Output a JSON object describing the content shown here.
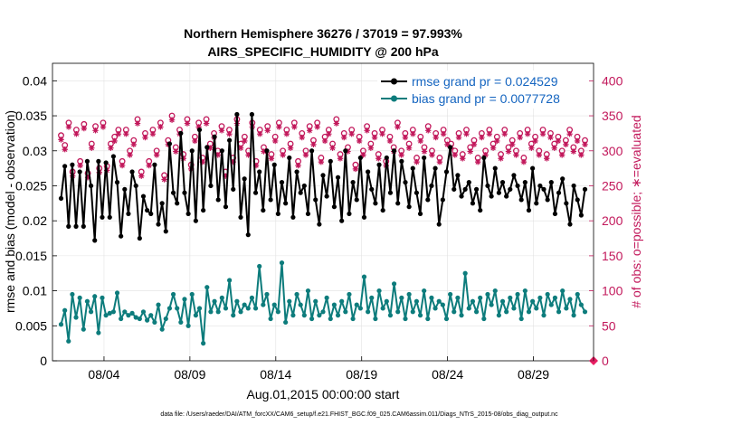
{
  "chart_data": {
    "type": "line",
    "title": "Northern Hemisphere 36276 / 37019 = 97.993%",
    "subtitle": "AIRS_SPECIFIC_HUMIDITY @ 200 hPa",
    "xlabel": "Aug.01,2015 00:00:00 start",
    "ylabel": "rmse and bias (model - observation)",
    "y2label": "# of obs: o=possible; ∗=evaluated",
    "x_ticks": [
      "08/04",
      "08/09",
      "08/14",
      "08/19",
      "08/24",
      "08/29"
    ],
    "x_range_days": [
      1,
      32.5
    ],
    "x_tick_days": [
      4,
      9,
      14,
      19,
      24,
      29
    ],
    "ylim": [
      0,
      0.0425
    ],
    "y_ticks": [
      "0",
      "0.005",
      "0.01",
      "0.015",
      "0.02",
      "0.025",
      "0.03",
      "0.035",
      "0.04"
    ],
    "y_tick_values": [
      0,
      0.005,
      0.01,
      0.015,
      0.02,
      0.025,
      0.03,
      0.035,
      0.04
    ],
    "y2lim": [
      0,
      425
    ],
    "y2_ticks": [
      "0",
      "50",
      "100",
      "150",
      "200",
      "250",
      "300",
      "350",
      "400"
    ],
    "y2_tick_values": [
      0,
      50,
      100,
      150,
      200,
      250,
      300,
      350,
      400
    ],
    "grid": true,
    "legend_position": "top-right",
    "series": [
      {
        "name": "rmse grand pr = 0.024529",
        "color": "#000000",
        "marker": "filled-circle",
        "axis": "left",
        "values": [
          0.0232,
          0.0278,
          0.0192,
          0.028,
          0.0192,
          0.027,
          0.0192,
          0.0285,
          0.025,
          0.0172,
          0.0285,
          0.0205,
          0.0283,
          0.0205,
          0.0292,
          0.0255,
          0.0178,
          0.0245,
          0.021,
          0.027,
          0.025,
          0.0175,
          0.0235,
          0.0215,
          0.021,
          0.028,
          0.0195,
          0.0225,
          0.0185,
          0.031,
          0.024,
          0.0225,
          0.0325,
          0.024,
          0.021,
          0.03,
          0.02,
          0.033,
          0.0215,
          0.0305,
          0.025,
          0.032,
          0.023,
          0.03,
          0.022,
          0.0315,
          0.0245,
          0.0352,
          0.0205,
          0.026,
          0.018,
          0.0352,
          0.024,
          0.027,
          0.0215,
          0.03,
          0.023,
          0.028,
          0.021,
          0.0255,
          0.0225,
          0.029,
          0.0205,
          0.027,
          0.024,
          0.025,
          0.021,
          0.03,
          0.023,
          0.0195,
          0.0265,
          0.0235,
          0.0285,
          0.022,
          0.0262,
          0.02,
          0.03,
          0.021,
          0.0255,
          0.023,
          0.029,
          0.0205,
          0.027,
          0.0245,
          0.0225,
          0.028,
          0.0215,
          0.029,
          0.024,
          0.03,
          0.0225,
          0.0285,
          0.0255,
          0.022,
          0.0275,
          0.024,
          0.021,
          0.029,
          0.023,
          0.025,
          0.0275,
          0.0195,
          0.023,
          0.027,
          0.0305,
          0.0245,
          0.0265,
          0.0235,
          0.0245,
          0.0255,
          0.0225,
          0.0245,
          0.0215,
          0.029,
          0.025,
          0.0235,
          0.0275,
          0.024,
          0.0255,
          0.0235,
          0.0245,
          0.0265,
          0.025,
          0.023,
          0.0255,
          0.0215,
          0.0275,
          0.0225,
          0.025,
          0.0245,
          0.023,
          0.0255,
          0.021,
          0.024,
          0.026,
          0.0225,
          0.0195,
          0.025,
          0.023,
          0.0208,
          0.0245
        ]
      },
      {
        "name": "bias grand pr = 0.0077728",
        "color": "#0d7c7c",
        "marker": "filled-circle",
        "axis": "left",
        "values": [
          0.0052,
          0.0072,
          0.0028,
          0.0095,
          0.0062,
          0.009,
          0.0045,
          0.0085,
          0.007,
          0.0092,
          0.004,
          0.009,
          0.0065,
          0.0068,
          0.007,
          0.0097,
          0.006,
          0.007,
          0.0065,
          0.0068,
          0.0062,
          0.006,
          0.007,
          0.0058,
          0.0065,
          0.0055,
          0.008,
          0.0045,
          0.006,
          0.0075,
          0.0095,
          0.0075,
          0.0055,
          0.0088,
          0.005,
          0.0095,
          0.0065,
          0.0075,
          0.0025,
          0.0105,
          0.007,
          0.0085,
          0.007,
          0.009,
          0.0075,
          0.0115,
          0.0065,
          0.0085,
          0.007,
          0.008,
          0.0075,
          0.009,
          0.0075,
          0.0135,
          0.008,
          0.0095,
          0.006,
          0.008,
          0.007,
          0.014,
          0.0055,
          0.0085,
          0.0065,
          0.0095,
          0.008,
          0.0065,
          0.01,
          0.006,
          0.0085,
          0.0065,
          0.007,
          0.009,
          0.006,
          0.008,
          0.0065,
          0.0085,
          0.007,
          0.0095,
          0.006,
          0.008,
          0.0075,
          0.012,
          0.007,
          0.009,
          0.006,
          0.01,
          0.0075,
          0.0085,
          0.0065,
          0.011,
          0.007,
          0.009,
          0.006,
          0.0095,
          0.007,
          0.0085,
          0.0065,
          0.01,
          0.006,
          0.009,
          0.0075,
          0.0085,
          0.008,
          0.006,
          0.0095,
          0.007,
          0.009,
          0.0065,
          0.0125,
          0.0075,
          0.0085,
          0.007,
          0.009,
          0.006,
          0.0095,
          0.008,
          0.01,
          0.0065,
          0.0085,
          0.007,
          0.009,
          0.0075,
          0.0095,
          0.006,
          0.01,
          0.007,
          0.0085,
          0.0075,
          0.009,
          0.0065,
          0.0095,
          0.008,
          0.009,
          0.007,
          0.01,
          0.0075,
          0.0088,
          0.0065,
          0.0095,
          0.008,
          0.007
        ]
      },
      {
        "name": "possible",
        "color": "#c2185b",
        "marker": "open-circle",
        "axis": "right",
        "values": [
          322,
          308,
          340,
          270,
          330,
          285,
          338,
          268,
          310,
          335,
          275,
          340,
          278,
          310,
          320,
          330,
          285,
          330,
          300,
          315,
          345,
          270,
          325,
          285,
          330,
          300,
          340,
          265,
          315,
          350,
          305,
          330,
          295,
          345,
          280,
          320,
          340,
          290,
          345,
          310,
          325,
          300,
          335,
          270,
          330,
          290,
          345,
          310,
          320,
          300,
          340,
          285,
          330,
          305,
          335,
          295,
          320,
          340,
          300,
          330,
          310,
          340,
          285,
          325,
          300,
          335,
          315,
          340,
          290,
          320,
          330,
          310,
          345,
          295,
          325,
          305,
          330,
          280,
          320,
          300,
          335,
          310,
          325,
          295,
          330,
          285,
          320,
          305,
          340,
          300,
          325,
          310,
          330,
          290,
          320,
          305,
          335,
          300,
          325,
          290,
          330,
          315,
          310,
          300,
          325,
          295,
          330,
          305,
          315,
          290,
          325,
          300,
          330,
          310,
          320,
          295,
          330,
          305,
          315,
          300,
          325,
          290,
          330,
          310,
          320,
          300,
          330,
          295,
          325,
          310,
          320,
          300,
          315,
          330,
          305,
          320,
          300,
          315
        ]
      },
      {
        "name": "evaluated",
        "color": "#c2185b",
        "marker": "asterisk",
        "axis": "right",
        "values": [
          316,
          302,
          334,
          264,
          324,
          279,
          332,
          262,
          304,
          329,
          269,
          334,
          272,
          304,
          314,
          324,
          279,
          324,
          294,
          309,
          339,
          264,
          319,
          279,
          324,
          294,
          334,
          259,
          309,
          344,
          299,
          324,
          289,
          339,
          274,
          314,
          334,
          284,
          339,
          304,
          319,
          294,
          329,
          264,
          324,
          284,
          339,
          304,
          314,
          294,
          334,
          279,
          324,
          299,
          329,
          289,
          314,
          334,
          294,
          324,
          304,
          334,
          279,
          319,
          294,
          329,
          309,
          334,
          284,
          314,
          324,
          304,
          339,
          289,
          319,
          299,
          324,
          274,
          314,
          294,
          329,
          304,
          319,
          289,
          324,
          279,
          314,
          299,
          334,
          294,
          319,
          304,
          324,
          284,
          314,
          299,
          329,
          294,
          319,
          284,
          324,
          309,
          304,
          294,
          319,
          289,
          324,
          299,
          309,
          284,
          319,
          294,
          324,
          304,
          314,
          289,
          324,
          299,
          309,
          294,
          319,
          284,
          324,
          304,
          314,
          294,
          324,
          289,
          319,
          304,
          314,
          294,
          309,
          324,
          299,
          314,
          294,
          309
        ]
      }
    ],
    "footer": "data file: /Users/raeder/DAI/ATM_forcXX/CAM6_setup/f.e21.FHIST_BGC.f09_025.CAM6assim.011/Diags_NTrS_2015-08/obs_diag_output.nc"
  }
}
